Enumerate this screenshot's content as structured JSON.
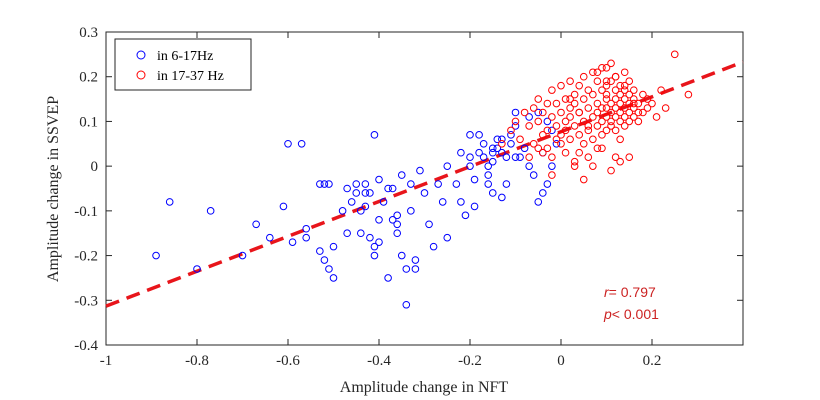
{
  "chart_data": {
    "type": "scatter",
    "title": "",
    "xlabel": "Amplitude change in NFT",
    "ylabel": "Amplitude change in SSVEP",
    "xlim": [
      -1,
      0.4
    ],
    "ylim": [
      -0.4,
      0.3
    ],
    "x_ticks": [
      -1,
      -0.8,
      -0.6,
      -0.4,
      -0.2,
      0,
      0.2
    ],
    "x_tick_labels": [
      "-1",
      "-0.8",
      "-0.6",
      "-0.4",
      "-0.2",
      "0",
      "0.2"
    ],
    "y_ticks": [
      -0.4,
      -0.3,
      -0.2,
      -0.1,
      0,
      0.1,
      0.2,
      0.3
    ],
    "y_tick_labels": [
      "-0.4",
      "-0.3",
      "-0.2",
      "-0.1",
      "0",
      "0.1",
      "0.2",
      "0.3"
    ],
    "grid": false,
    "legend_position": "top-left",
    "series": [
      {
        "name": "in 6-17Hz",
        "color": "#0000ff",
        "marker": "circle-open",
        "x": [
          -0.89,
          -0.86,
          -0.8,
          -0.77,
          -0.7,
          -0.67,
          -0.64,
          -0.61,
          -0.6,
          -0.59,
          -0.57,
          -0.56,
          -0.56,
          -0.53,
          -0.53,
          -0.52,
          -0.52,
          -0.51,
          -0.51,
          -0.5,
          -0.47,
          -0.47,
          -0.46,
          -0.45,
          -0.44,
          -0.44,
          -0.43,
          -0.43,
          -0.42,
          -0.42,
          -0.41,
          -0.41,
          -0.41,
          -0.4,
          -0.4,
          -0.39,
          -0.38,
          -0.37,
          -0.36,
          -0.36,
          -0.35,
          -0.35,
          -0.34,
          -0.34,
          -0.33,
          -0.32,
          -0.32,
          -0.3,
          -0.29,
          -0.28,
          -0.27,
          -0.26,
          -0.25,
          -0.23,
          -0.22,
          -0.21,
          -0.2,
          -0.2,
          -0.19,
          -0.19,
          -0.18,
          -0.18,
          -0.17,
          -0.17,
          -0.16,
          -0.16,
          -0.16,
          -0.15,
          -0.15,
          -0.15,
          -0.14,
          -0.14,
          -0.13,
          -0.13,
          -0.12,
          -0.12,
          -0.11,
          -0.11,
          -0.1,
          -0.1,
          -0.09,
          -0.08,
          -0.07,
          -0.06,
          -0.05,
          -0.04,
          -0.04,
          -0.03,
          -0.02,
          -0.01,
          -0.02,
          -0.03,
          -0.05,
          -0.07,
          -0.1,
          -0.13,
          -0.15,
          -0.2,
          -0.22,
          -0.25,
          -0.31,
          -0.33,
          -0.37,
          -0.4,
          -0.43,
          -0.45,
          -0.48,
          -0.36,
          -0.5,
          -0.38
        ],
        "y": [
          -0.2,
          -0.08,
          -0.23,
          -0.1,
          -0.2,
          -0.13,
          -0.16,
          -0.09,
          0.05,
          -0.17,
          0.05,
          -0.14,
          -0.16,
          -0.04,
          -0.19,
          -0.04,
          -0.21,
          -0.04,
          -0.23,
          -0.25,
          -0.15,
          -0.05,
          -0.08,
          -0.06,
          -0.1,
          -0.15,
          -0.04,
          -0.06,
          -0.06,
          -0.16,
          -0.18,
          -0.2,
          0.07,
          -0.03,
          -0.17,
          -0.08,
          -0.25,
          -0.05,
          -0.11,
          -0.13,
          -0.02,
          -0.2,
          -0.23,
          -0.31,
          -0.1,
          -0.21,
          -0.23,
          -0.06,
          -0.13,
          -0.18,
          -0.04,
          -0.08,
          -0.16,
          -0.04,
          -0.08,
          -0.11,
          0.0,
          0.07,
          -0.09,
          -0.03,
          0.03,
          0.07,
          0.05,
          0.02,
          0.0,
          -0.02,
          -0.04,
          0.03,
          -0.06,
          0.01,
          0.04,
          0.06,
          0.03,
          -0.07,
          0.02,
          -0.04,
          0.07,
          0.05,
          0.12,
          0.02,
          0.02,
          0.04,
          0.0,
          -0.02,
          -0.08,
          0.03,
          -0.06,
          -0.04,
          0.0,
          0.05,
          0.08,
          0.1,
          0.12,
          0.11,
          0.09,
          0.06,
          0.04,
          0.02,
          0.03,
          0.0,
          -0.01,
          -0.04,
          -0.12,
          -0.12,
          -0.09,
          -0.04,
          -0.1,
          -0.15,
          -0.18,
          -0.05
        ],
        "count_note": ""
      },
      {
        "name": "in 17-37 Hz",
        "color": "#ff0000",
        "marker": "circle-open",
        "x": [
          -0.13,
          -0.11,
          -0.1,
          -0.09,
          -0.08,
          -0.07,
          -0.07,
          -0.06,
          -0.06,
          -0.05,
          -0.05,
          -0.04,
          -0.04,
          -0.04,
          -0.03,
          -0.03,
          -0.03,
          -0.02,
          -0.02,
          -0.02,
          -0.01,
          -0.01,
          -0.01,
          0.0,
          0.0,
          0.0,
          0.01,
          0.01,
          0.01,
          0.01,
          0.02,
          0.02,
          0.02,
          0.02,
          0.03,
          0.03,
          0.03,
          0.03,
          0.04,
          0.04,
          0.04,
          0.04,
          0.05,
          0.05,
          0.05,
          0.05,
          0.06,
          0.06,
          0.06,
          0.06,
          0.07,
          0.07,
          0.07,
          0.07,
          0.08,
          0.08,
          0.08,
          0.08,
          0.08,
          0.09,
          0.09,
          0.09,
          0.09,
          0.09,
          0.1,
          0.1,
          0.1,
          0.1,
          0.1,
          0.1,
          0.11,
          0.11,
          0.11,
          0.11,
          0.11,
          0.11,
          0.12,
          0.12,
          0.12,
          0.12,
          0.12,
          0.12,
          0.13,
          0.13,
          0.13,
          0.13,
          0.13,
          0.13,
          0.14,
          0.14,
          0.14,
          0.14,
          0.14,
          0.14,
          0.15,
          0.15,
          0.15,
          0.15,
          0.15,
          0.16,
          0.16,
          0.16,
          0.16,
          0.17,
          0.17,
          0.17,
          0.18,
          0.18,
          0.19,
          0.19,
          0.2,
          0.21,
          0.22,
          0.23,
          0.25,
          0.28,
          -0.05,
          -0.02,
          0.0,
          0.03,
          0.05,
          0.07,
          0.09,
          0.11,
          0.13,
          0.15,
          0.06,
          0.04,
          0.02,
          0.1,
          0.12,
          0.14,
          0.08,
          0.16,
          0.1,
          0.12
        ],
        "y": [
          0.05,
          0.08,
          0.1,
          0.06,
          0.12,
          0.02,
          0.09,
          0.13,
          0.05,
          0.15,
          0.1,
          0.07,
          0.03,
          0.12,
          0.14,
          0.08,
          0.04,
          0.17,
          0.11,
          0.02,
          0.09,
          0.14,
          0.06,
          0.12,
          0.18,
          0.05,
          0.1,
          0.15,
          0.08,
          0.03,
          0.13,
          0.19,
          0.11,
          0.06,
          0.16,
          0.09,
          0.14,
          0.0,
          0.12,
          0.18,
          0.07,
          0.03,
          0.15,
          0.1,
          0.2,
          0.05,
          0.13,
          0.17,
          0.08,
          0.02,
          0.11,
          0.16,
          0.21,
          0.06,
          0.14,
          0.09,
          0.19,
          0.12,
          0.04,
          0.17,
          0.1,
          0.13,
          0.22,
          0.07,
          0.15,
          0.11,
          0.18,
          0.08,
          0.13,
          0.16,
          0.12,
          0.19,
          0.1,
          0.14,
          0.09,
          0.23,
          0.17,
          0.11,
          0.15,
          0.13,
          0.08,
          0.2,
          0.12,
          0.16,
          0.1,
          0.14,
          0.18,
          0.06,
          0.13,
          0.21,
          0.11,
          0.15,
          0.09,
          0.17,
          0.12,
          0.19,
          0.14,
          0.1,
          0.16,
          0.11,
          0.13,
          0.15,
          0.17,
          0.12,
          0.1,
          0.14,
          0.16,
          0.12,
          0.13,
          0.15,
          0.14,
          0.11,
          0.17,
          0.13,
          0.25,
          0.16,
          0.04,
          -0.02,
          0.07,
          0.01,
          -0.03,
          0.0,
          0.04,
          -0.01,
          0.01,
          0.02,
          0.09,
          0.12,
          0.15,
          0.19,
          0.2,
          0.18,
          0.21,
          0.14,
          0.22,
          0.02
        ],
        "count_note": ""
      }
    ],
    "trendline": {
      "color": "#e8151b",
      "style": "dashed",
      "x": [
        -1,
        0.4
      ],
      "y": [
        -0.313,
        0.233
      ]
    },
    "annotations": {
      "r_label": "r",
      "r_value": "= 0.797",
      "p_label": "p",
      "p_value": "< 0.001",
      "color": "#cc2222"
    }
  }
}
